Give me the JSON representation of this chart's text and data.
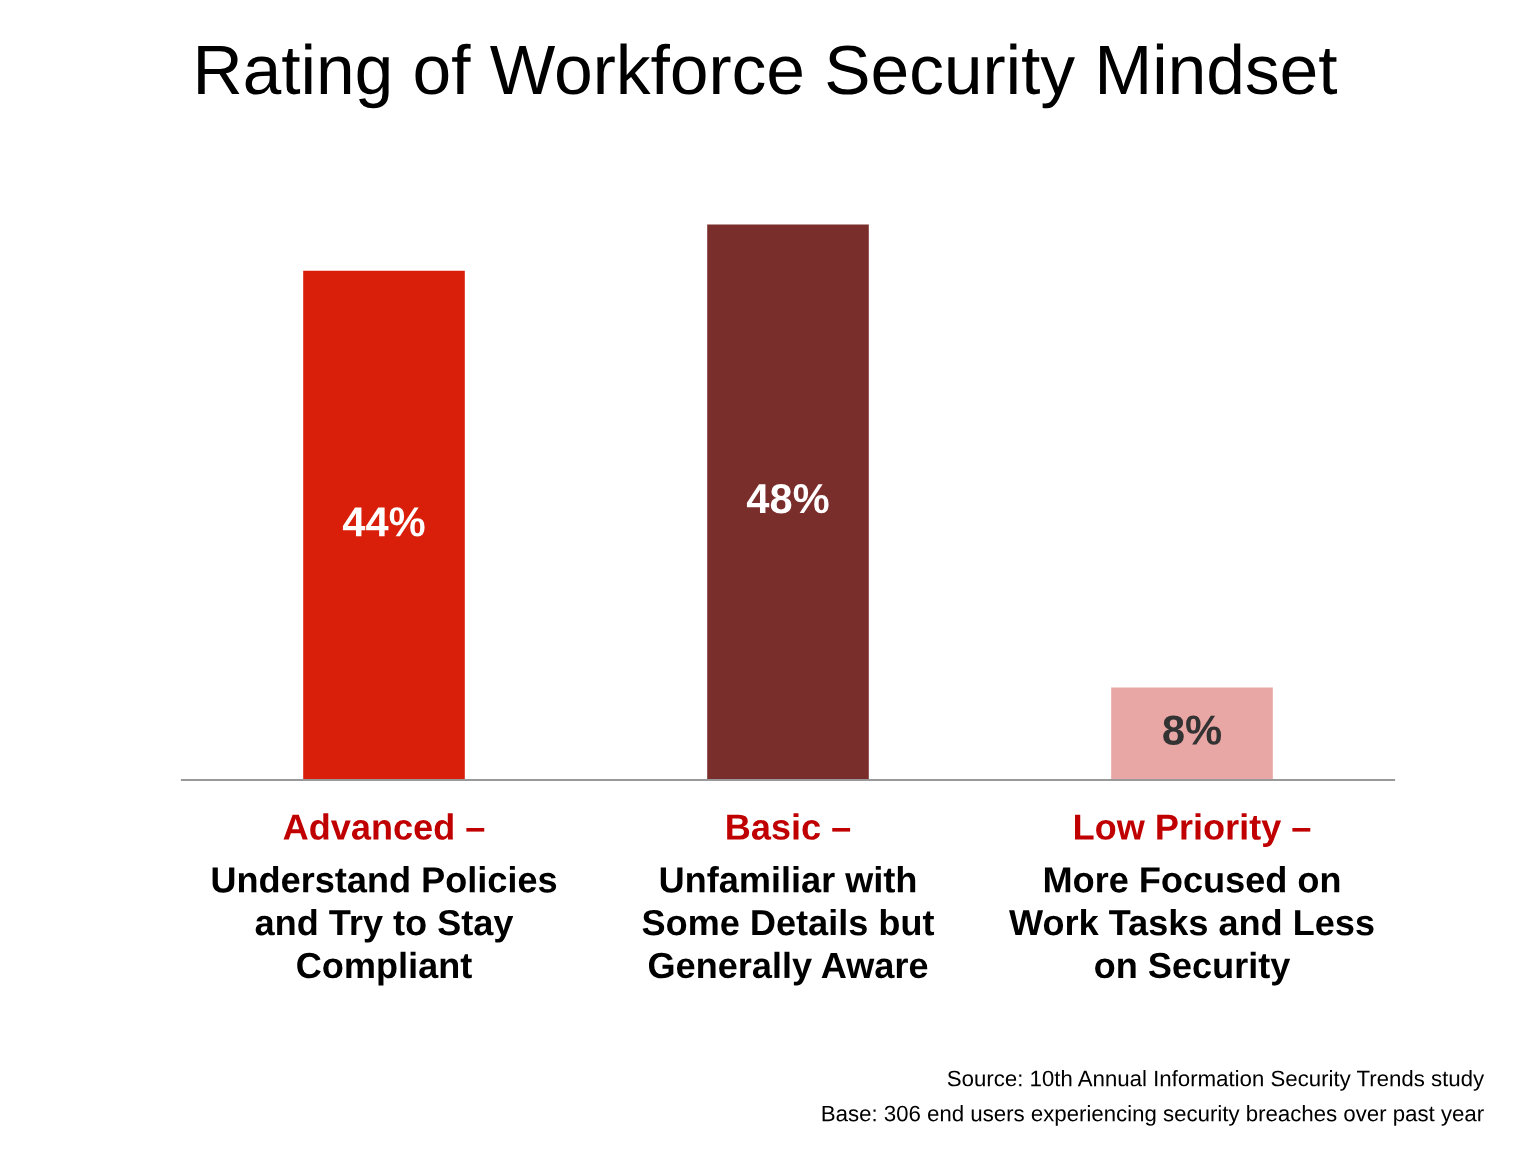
{
  "chart_data": {
    "type": "bar",
    "title": "Rating of Workforce Security Mindset",
    "categories": [
      "Advanced –\nUnderstand Policies\nand Try to Stay\nCompliant",
      "Basic –\nUnfamiliar with\nSome Details but\nGenerally Aware",
      "Low Priority –\nMore Focused on\nWork Tasks and Less\non Security"
    ],
    "values": [
      44,
      48,
      8
    ],
    "colors": [
      "#d91f0a",
      "#7a2e2c",
      "#e8a6a4"
    ],
    "value_labels": [
      "44%",
      "48%",
      "8%"
    ],
    "annotations": [
      "Source: 10th Annual Information Security Trends study",
      "Base: 306 end users experiencing security breaches over past year"
    ],
    "grid": false,
    "legend": false
  }
}
